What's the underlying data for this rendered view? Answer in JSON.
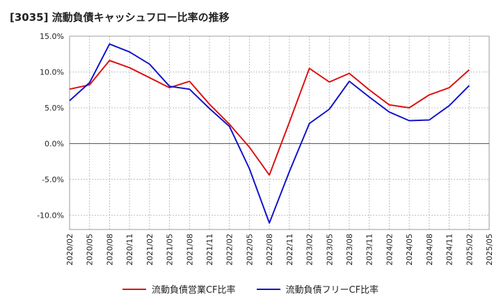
{
  "chart_data": {
    "type": "line",
    "title": "[3035]  流動負債キャッシュフロー比率の推移",
    "x": [
      "2020/02",
      "2020/05",
      "2020/08",
      "2020/11",
      "2021/02",
      "2021/05",
      "2021/08",
      "2021/11",
      "2022/02",
      "2022/05",
      "2022/08",
      "2022/11",
      "2023/02",
      "2023/05",
      "2023/08",
      "2023/11",
      "2024/02",
      "2024/05",
      "2024/08",
      "2024/11",
      "2025/02"
    ],
    "x_ticks": [
      "2020/02",
      "2020/05",
      "2020/08",
      "2020/11",
      "2021/02",
      "2021/05",
      "2021/08",
      "2021/11",
      "2022/02",
      "2022/05",
      "2022/08",
      "2022/11",
      "2023/02",
      "2023/05",
      "2023/08",
      "2023/11",
      "2024/02",
      "2024/05",
      "2024/08",
      "2024/11",
      "2025/02",
      "2025/05"
    ],
    "y_ticks": [
      "15.0%",
      "10.0%",
      "5.0%",
      "0.0%",
      "-5.0%",
      "-10.0%"
    ],
    "y_tick_values": [
      15,
      10,
      5,
      0,
      -5,
      -10
    ],
    "ylim": [
      -12,
      15
    ],
    "grid": true,
    "legend_position": "bottom",
    "series": [
      {
        "name": "流動負債営業CF比率",
        "color": "#dd1111",
        "values": [
          7.6,
          8.2,
          11.6,
          10.6,
          9.2,
          7.8,
          8.7,
          5.5,
          2.7,
          -0.5,
          -4.4,
          3.0,
          10.5,
          8.6,
          9.8,
          7.5,
          5.4,
          5.0,
          6.8,
          7.8,
          10.3
        ]
      },
      {
        "name": "流動負債フリーCF比率",
        "color": "#1111cc",
        "values": [
          6.0,
          8.5,
          13.9,
          12.8,
          11.1,
          8.0,
          7.6,
          4.9,
          2.4,
          -3.5,
          -11.1,
          -3.9,
          2.8,
          4.8,
          8.7,
          6.5,
          4.4,
          3.2,
          3.3,
          5.3,
          8.1
        ]
      }
    ]
  }
}
